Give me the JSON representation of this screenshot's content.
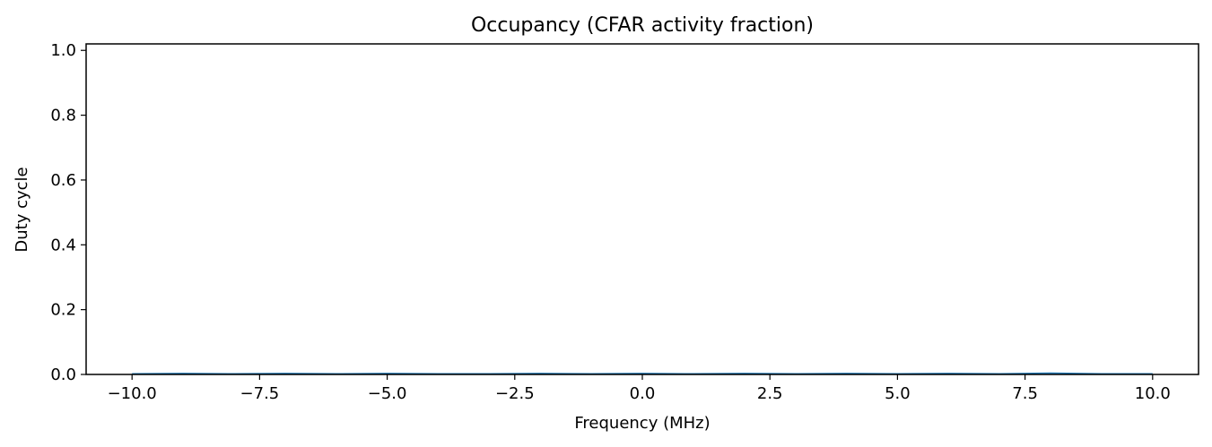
{
  "chart_data": {
    "type": "line",
    "title": "Occupancy (CFAR activity fraction)",
    "xlabel": "Frequency (MHz)",
    "ylabel": "Duty cycle",
    "xlim": [
      -10.9,
      10.9
    ],
    "ylim": [
      0.0,
      1.02
    ],
    "x_ticks": [
      -10.0,
      -7.5,
      -5.0,
      -2.5,
      0.0,
      2.5,
      5.0,
      7.5,
      10.0
    ],
    "x_tick_labels": [
      "−10.0",
      "−7.5",
      "−5.0",
      "−2.5",
      "0.0",
      "2.5",
      "5.0",
      "7.5",
      "10.0"
    ],
    "y_ticks": [
      0.0,
      0.2,
      0.4,
      0.6,
      0.8,
      1.0
    ],
    "y_tick_labels": [
      "0.0",
      "0.2",
      "0.4",
      "0.6",
      "0.8",
      "1.0"
    ],
    "grid": false,
    "series": [
      {
        "color": "#1f77b4",
        "x": [
          -10.0,
          -9.0,
          -8.0,
          -7.0,
          -6.0,
          -5.0,
          -4.0,
          -3.0,
          -2.0,
          -1.0,
          0.0,
          1.0,
          2.0,
          3.0,
          4.0,
          5.0,
          6.0,
          7.0,
          8.0,
          9.0,
          10.0
        ],
        "values": [
          0.002,
          0.003,
          0.002,
          0.003,
          0.002,
          0.003,
          0.002,
          0.002,
          0.003,
          0.002,
          0.003,
          0.002,
          0.003,
          0.002,
          0.003,
          0.002,
          0.003,
          0.002,
          0.004,
          0.002,
          0.002
        ]
      }
    ]
  }
}
